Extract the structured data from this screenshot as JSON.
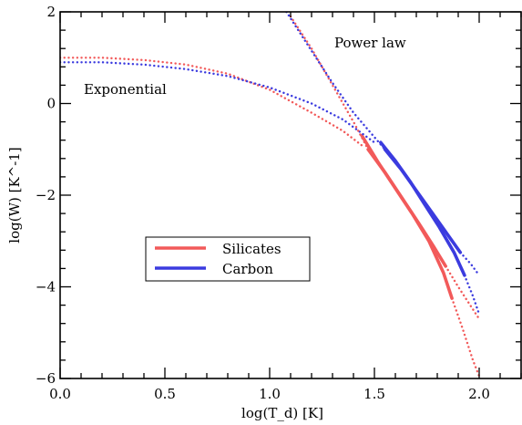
{
  "chart_data": {
    "type": "line",
    "title": "",
    "xlabel": "log(T_d) [K]",
    "ylabel": "log(W) [K^-1]",
    "xlim": [
      0.0,
      2.2
    ],
    "ylim": [
      -6,
      2
    ],
    "x_ticks": [
      "0.0",
      "0.5",
      "1.0",
      "1.5",
      "2.0"
    ],
    "y_ticks": [
      "−6",
      "−4",
      "−2",
      "0",
      "2"
    ],
    "annotations": {
      "power_law": "Power law",
      "exponential": "Exponential"
    },
    "legend": {
      "position": "lower-left",
      "entries": [
        {
          "label": "Silicates",
          "color": "#f25a5a"
        },
        {
          "label": "Carbon",
          "color": "#3b3bdf"
        }
      ]
    },
    "series": [
      {
        "name": "Silicates",
        "style": "solid",
        "color": "#f25a5a",
        "x": [
          1.44,
          1.52,
          1.6,
          1.68,
          1.76,
          1.83,
          1.87
        ],
        "y": [
          -0.7,
          -1.3,
          -1.85,
          -2.4,
          -3.0,
          -3.7,
          -4.25
        ]
      },
      {
        "name": "Silicates",
        "style": "solid",
        "color": "#f25a5a",
        "x": [
          1.47,
          1.55,
          1.63,
          1.71,
          1.78,
          1.84
        ],
        "y": [
          -1.0,
          -1.5,
          -2.05,
          -2.6,
          -3.1,
          -3.55
        ]
      },
      {
        "name": "Carbon",
        "style": "solid",
        "color": "#3b3bdf",
        "x": [
          1.53,
          1.6,
          1.67,
          1.74,
          1.81,
          1.88,
          1.93
        ],
        "y": [
          -0.85,
          -1.25,
          -1.7,
          -2.2,
          -2.7,
          -3.25,
          -3.75
        ]
      },
      {
        "name": "Carbon",
        "style": "solid",
        "color": "#3b3bdf",
        "x": [
          1.55,
          1.63,
          1.7,
          1.77,
          1.84,
          1.91
        ],
        "y": [
          -1.0,
          -1.45,
          -1.9,
          -2.35,
          -2.8,
          -3.25
        ]
      },
      {
        "name": "Silicates",
        "style": "dotted",
        "color": "#f25a5a",
        "x": [
          0.0,
          0.2,
          0.4,
          0.6,
          0.8,
          1.0,
          1.2,
          1.35,
          1.45
        ],
        "y": [
          1.0,
          1.0,
          0.95,
          0.85,
          0.65,
          0.3,
          -0.2,
          -0.6,
          -0.95
        ]
      },
      {
        "name": "Carbon",
        "style": "dotted",
        "color": "#3b3bdf",
        "x": [
          0.0,
          0.2,
          0.4,
          0.6,
          0.8,
          1.0,
          1.2,
          1.35,
          1.5
        ],
        "y": [
          0.9,
          0.9,
          0.85,
          0.75,
          0.6,
          0.35,
          0.0,
          -0.35,
          -0.85
        ]
      },
      {
        "name": "Silicates",
        "style": "dotted",
        "color": "#f25a5a",
        "x": [
          1.87,
          1.92,
          1.97,
          2.0
        ],
        "y": [
          -4.25,
          -4.9,
          -5.6,
          -5.95
        ]
      },
      {
        "name": "Silicates",
        "style": "dotted",
        "color": "#f25a5a",
        "x": [
          1.84,
          1.9,
          1.95,
          2.0
        ],
        "y": [
          -3.55,
          -4.0,
          -4.35,
          -4.7
        ]
      },
      {
        "name": "Carbon",
        "style": "dotted",
        "color": "#3b3bdf",
        "x": [
          1.93,
          1.97,
          2.0
        ],
        "y": [
          -3.75,
          -4.2,
          -4.6
        ]
      },
      {
        "name": "Carbon",
        "style": "dotted",
        "color": "#3b3bdf",
        "x": [
          1.91,
          1.96,
          2.0
        ],
        "y": [
          -3.25,
          -3.5,
          -3.75
        ]
      },
      {
        "name": "Silicates",
        "style": "dotted",
        "color": "#f25a5a",
        "x": [
          1.1,
          1.2,
          1.3,
          1.4,
          1.47
        ],
        "y": [
          1.9,
          1.2,
          0.4,
          -0.4,
          -1.0
        ]
      },
      {
        "name": "Carbon",
        "style": "dotted",
        "color": "#3b3bdf",
        "x": [
          1.08,
          1.2,
          1.3,
          1.4,
          1.55
        ],
        "y": [
          2.0,
          1.15,
          0.45,
          -0.2,
          -1.0
        ]
      }
    ]
  }
}
